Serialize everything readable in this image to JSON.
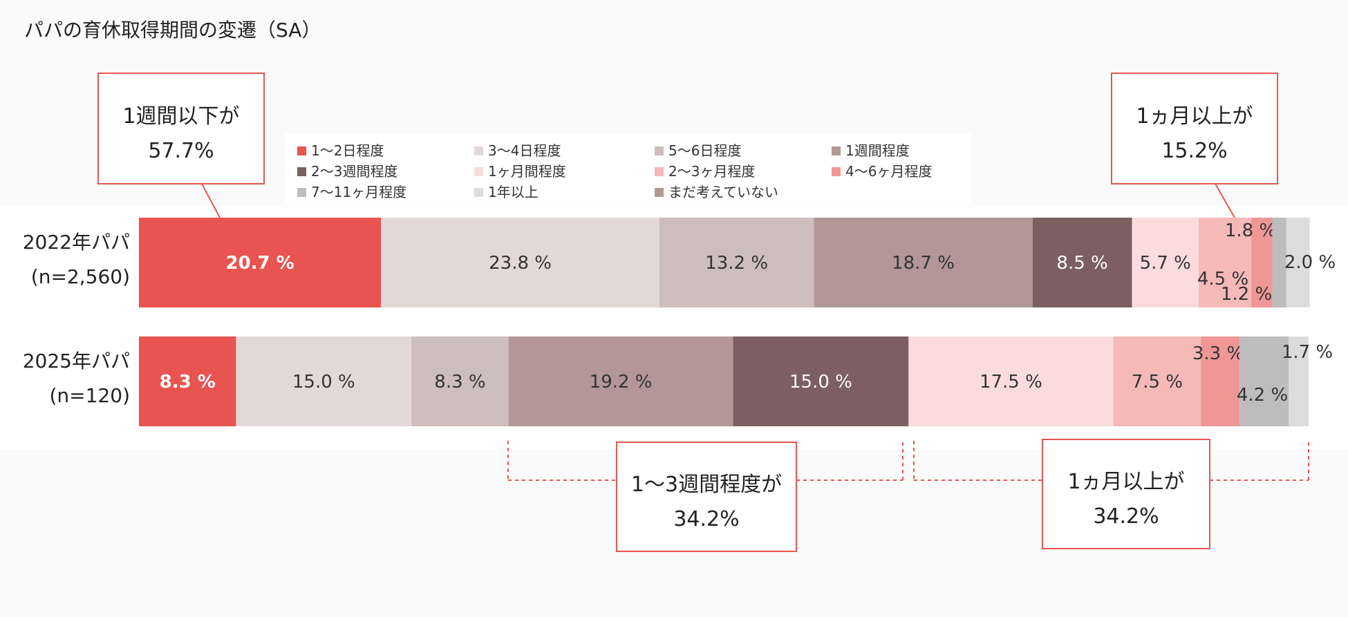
{
  "chart_data": {
    "type": "bar",
    "orientation": "horizontal",
    "stacked": true,
    "title": "パパの育休取得期間の変遷（SA）",
    "categories": [
      {
        "line1": "2022年パパ",
        "line2": "(n=2,560)"
      },
      {
        "line1": "2025年パパ",
        "line2": "(n=120)"
      }
    ],
    "xlim": [
      0,
      100
    ],
    "legend_position": "top-center",
    "series": [
      {
        "name": "1～2日程度",
        "color": "#e85450",
        "values": [
          20.7,
          8.3
        ],
        "labels": [
          "20.7 %",
          "8.3 %"
        ]
      },
      {
        "name": "3～4日程度",
        "color": "#e3d8d8",
        "values": [
          23.8,
          15.0
        ],
        "labels": [
          "23.8 %",
          "15.0 %"
        ]
      },
      {
        "name": "5～6日程度",
        "color": "#cdbdbd",
        "values": [
          13.2,
          8.3
        ],
        "labels": [
          "13.2 %",
          "8.3 %"
        ]
      },
      {
        "name": "1週間程度",
        "color": "#b39797",
        "values": [
          18.7,
          19.2
        ],
        "labels": [
          "18.7 %",
          "19.2 %"
        ]
      },
      {
        "name": "2～3週間程度",
        "color": "#7c5f60",
        "values": [
          8.5,
          15.0
        ],
        "labels": [
          "8.5 %",
          "15.0 %"
        ]
      },
      {
        "name": "1ヶ月間程度",
        "color": "#fadcdc",
        "values": [
          5.7,
          17.5
        ],
        "labels": [
          "5.7 %",
          "17.5 %"
        ]
      },
      {
        "name": "2～3ヶ月程度",
        "color": "#f5b9b8",
        "values": [
          4.5,
          7.5
        ],
        "labels": [
          "4.5 %",
          "7.5 %"
        ]
      },
      {
        "name": "4～6ヶ月程度",
        "color": "#ef9796",
        "values": [
          1.8,
          3.3
        ],
        "labels": [
          "1.8 %",
          "3.3 %"
        ]
      },
      {
        "name": "7～11ヶ月程度",
        "color": "#bdbdbd",
        "values": [
          1.2,
          4.2
        ],
        "labels": [
          "1.2 %",
          "4.2 %"
        ]
      },
      {
        "name": "1年以上",
        "color": "#dcdcdc",
        "values": [
          2.0,
          1.7
        ],
        "labels": [
          "2.0 %",
          "1.7 %"
        ]
      },
      {
        "name": "まだ考えていない",
        "color": "#b39797",
        "values": [
          0,
          0
        ],
        "labels": [
          "",
          ""
        ]
      }
    ],
    "annotations": [
      {
        "line1": "1週間以下が",
        "line2": "57.7%"
      },
      {
        "line1": "1ヵ月以上が",
        "line2": "15.2%"
      },
      {
        "line1": "1～3週間程度が",
        "line2": "34.2%"
      },
      {
        "line1": "1ヵ月以上が",
        "line2": "34.2%"
      }
    ]
  }
}
